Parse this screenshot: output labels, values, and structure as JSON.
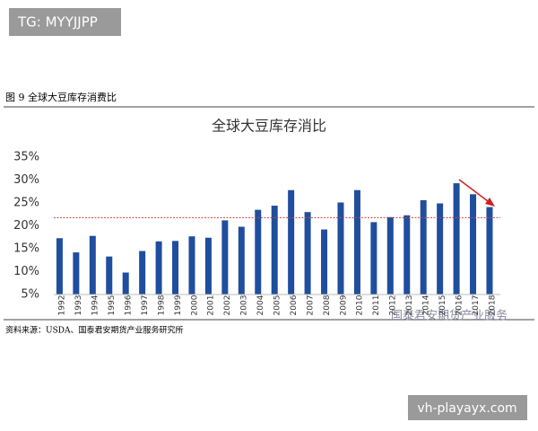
{
  "watermark_top": "TG: MYYJJPP",
  "figure_caption": "图 9 全球大豆库存消费比",
  "source": "资料来源：USDA、国泰君安期货产业服务研究所",
  "brand": "国泰君安期货产业服务",
  "watermark_bottom": "vh-playayx.com",
  "chart_data": {
    "type": "bar",
    "title": "全球大豆库存消比",
    "categories": [
      "1992",
      "1993",
      "1994",
      "1995",
      "1996",
      "1997",
      "1998",
      "1999",
      "2000",
      "2001",
      "2002",
      "2003",
      "2004",
      "2005",
      "2006",
      "2007",
      "2008",
      "2009",
      "2010",
      "2011",
      "2012",
      "2013",
      "2014",
      "2015",
      "2016",
      "2017",
      "2018"
    ],
    "values": [
      17.3,
      14.2,
      17.8,
      13.3,
      9.8,
      14.5,
      16.6,
      16.7,
      17.7,
      17.4,
      21.2,
      19.8,
      23.5,
      24.4,
      27.8,
      23.0,
      19.2,
      25.1,
      27.8,
      20.8,
      21.9,
      22.3,
      25.6,
      24.9,
      29.3,
      26.9,
      24.1
    ],
    "color": "#1f4e9e",
    "ylim": [
      5,
      35
    ],
    "yticks": [
      {
        "value": 5,
        "label": "5%"
      },
      {
        "value": 10,
        "label": "10%"
      },
      {
        "value": 15,
        "label": "15%"
      },
      {
        "value": 20,
        "label": "20%"
      },
      {
        "value": 25,
        "label": "25%"
      },
      {
        "value": 30,
        "label": "30%"
      },
      {
        "value": 35,
        "label": "35%"
      }
    ],
    "reference_line": {
      "value": 21.8,
      "color": "#d04040"
    }
  }
}
